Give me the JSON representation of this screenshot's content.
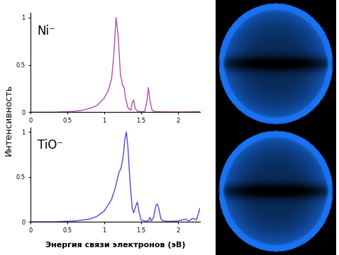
{
  "chart_data": [
    {
      "type": "line",
      "annotation": "Ni⁻",
      "color": "#b24fae",
      "x": [
        0,
        0.3,
        0.5,
        0.6,
        0.7,
        0.8,
        0.9,
        1.0,
        1.05,
        1.1,
        1.13,
        1.16,
        1.19,
        1.22,
        1.25,
        1.27,
        1.29,
        1.32,
        1.36,
        1.38,
        1.4,
        1.42,
        1.45,
        1.5,
        1.55,
        1.58,
        1.6,
        1.62,
        1.65,
        1.7,
        1.9,
        2.1,
        2.3
      ],
      "values": [
        0,
        0,
        0.005,
        0.01,
        0.02,
        0.04,
        0.07,
        0.15,
        0.22,
        0.35,
        0.6,
        1.0,
        0.8,
        0.4,
        0.28,
        0.26,
        0.15,
        0.05,
        0.02,
        0.1,
        0.13,
        0.04,
        0.01,
        0.005,
        0.01,
        0.12,
        0.26,
        0.12,
        0.02,
        0.005,
        0.003,
        0.003,
        0.005
      ],
      "xlim": [
        0,
        2.3
      ],
      "ylim": [
        0,
        1.05
      ],
      "xticks": [
        0,
        0.5,
        1,
        1.5,
        2
      ],
      "yticks": [
        0,
        0.5,
        1
      ]
    },
    {
      "type": "line",
      "annotation": "TiO⁻",
      "color": "#4b4ae0",
      "x": [
        0,
        0.3,
        0.6,
        0.8,
        0.9,
        1.0,
        1.1,
        1.15,
        1.2,
        1.23,
        1.26,
        1.28,
        1.3,
        1.32,
        1.35,
        1.38,
        1.4,
        1.43,
        1.45,
        1.47,
        1.5,
        1.55,
        1.6,
        1.62,
        1.64,
        1.67,
        1.7,
        1.72,
        1.74,
        1.77,
        1.8,
        1.9,
        2.0,
        2.1,
        2.15,
        2.2,
        2.25,
        2.3
      ],
      "values": [
        0,
        0,
        0.01,
        0.03,
        0.06,
        0.12,
        0.25,
        0.38,
        0.55,
        0.6,
        0.75,
        0.92,
        1.0,
        0.85,
        0.45,
        0.15,
        0.1,
        0.18,
        0.22,
        0.12,
        0.02,
        0.01,
        0.01,
        0.05,
        0.01,
        0.05,
        0.18,
        0.2,
        0.15,
        0.03,
        0.01,
        0.005,
        0.01,
        0.03,
        0.01,
        0.04,
        0.02,
        0.15
      ],
      "xlim": [
        0,
        2.3
      ],
      "ylim": [
        0,
        1.05
      ],
      "xticks": [
        0,
        0.5,
        1,
        1.5,
        2
      ],
      "yticks": [
        0,
        0.5,
        1
      ]
    }
  ],
  "x_label": "Энергия связи электронов (эВ)",
  "y_label": "Интенсивность"
}
